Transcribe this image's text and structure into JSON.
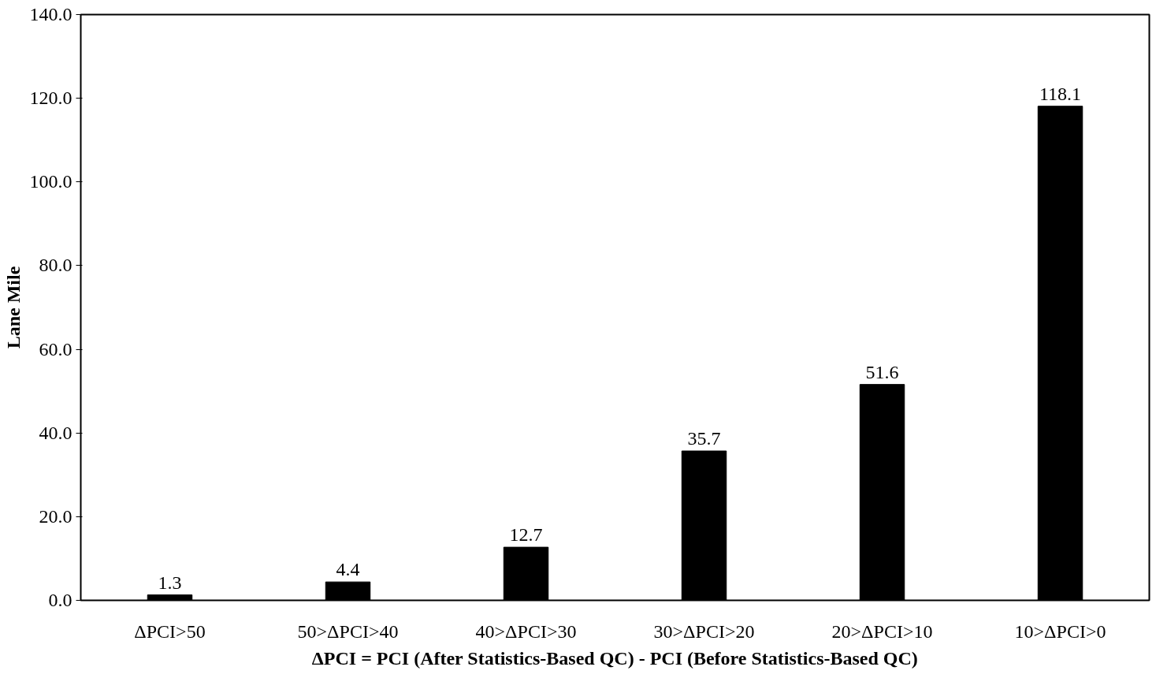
{
  "chart_data": {
    "type": "bar",
    "xlabel": "ΔPCI = PCI (After Statistics-Based QC) - PCI (Before Statistics-Based QC)",
    "ylabel": "Lane Mile",
    "categories": [
      "ΔPCI>50",
      "50>ΔPCI>40",
      "40>ΔPCI>30",
      "30>ΔPCI>20",
      "20>ΔPCI>10",
      "10>ΔPCI>0"
    ],
    "values": [
      1.3,
      4.4,
      12.7,
      35.7,
      51.6,
      118.1
    ],
    "color": "#000000",
    "ylim": [
      0,
      140
    ],
    "yticks": [
      {
        "value": 0,
        "label": "0.0"
      },
      {
        "value": 20,
        "label": "20.0"
      },
      {
        "value": 40,
        "label": "40.0"
      },
      {
        "value": 60,
        "label": "60.0"
      },
      {
        "value": 80,
        "label": "80.0"
      },
      {
        "value": 100,
        "label": "100.0"
      },
      {
        "value": 120,
        "label": "120.0"
      },
      {
        "value": 140,
        "label": "140.0"
      }
    ],
    "data_labels": true,
    "grid": false
  }
}
